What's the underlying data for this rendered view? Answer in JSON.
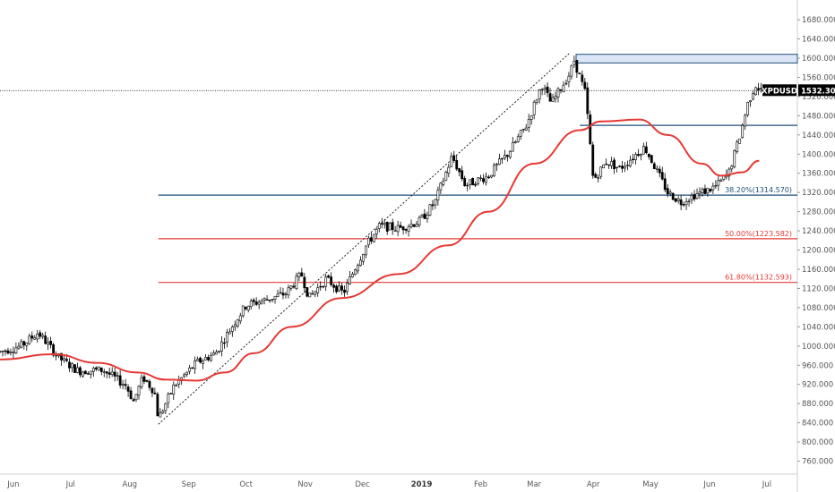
{
  "chart_data": {
    "type": "candlestick",
    "symbol": "XPDUSD",
    "last_price": "1532.300",
    "y_range": [
      748,
      1710
    ],
    "y_ticks": [
      "760.000",
      "800.000",
      "840.000",
      "880.000",
      "920.000",
      "960.000",
      "1000.000",
      "1040.000",
      "1080.000",
      "1120.000",
      "1160.000",
      "1200.000",
      "1240.000",
      "1280.000",
      "1320.000",
      "1360.000",
      "1400.000",
      "1440.000",
      "1480.000",
      "1520.000",
      "1560.000",
      "1600.000",
      "1640.000",
      "1680.000"
    ],
    "x_labels": [
      {
        "label": "Jun",
        "bold": false
      },
      {
        "label": "Jul",
        "bold": false
      },
      {
        "label": "Aug",
        "bold": false
      },
      {
        "label": "Sep",
        "bold": false
      },
      {
        "label": "Oct",
        "bold": false
      },
      {
        "label": "Nov",
        "bold": false
      },
      {
        "label": "Dec",
        "bold": false
      },
      {
        "label": "2019",
        "bold": true
      },
      {
        "label": "Feb",
        "bold": false
      },
      {
        "label": "Mar",
        "bold": false
      },
      {
        "label": "Apr",
        "bold": false
      },
      {
        "label": "May",
        "bold": false
      },
      {
        "label": "Jun",
        "bold": false
      },
      {
        "label": "Jul",
        "bold": false
      }
    ],
    "fib_levels": [
      {
        "label": "38.20%(1314.570)",
        "value": 1314.57,
        "color": "#1f4e79"
      },
      {
        "label": "50.00%(1223.582)",
        "value": 1223.582,
        "color": "#e53935"
      },
      {
        "label": "61.80%(1132.593)",
        "value": 1132.593,
        "color": "#e53935"
      }
    ],
    "horizontal_levels": [
      {
        "value": 1460,
        "color": "#1f4e79"
      }
    ],
    "resistance_zone": {
      "low": 1590,
      "high": 1608,
      "color": "#dce6f7",
      "border": "#1f4e79"
    },
    "trend_line": {
      "start": [
        "2018-08-16",
        837
      ],
      "end": [
        "2019-03-20",
        1612
      ]
    },
    "moving_average_color": "#e53935",
    "candle_color": "#000000",
    "price_key_points": [
      [
        "2018-05-25",
        988
      ],
      [
        "2018-06-05",
        1000
      ],
      [
        "2018-06-14",
        1028
      ],
      [
        "2018-06-25",
        975
      ],
      [
        "2018-07-05",
        948
      ],
      [
        "2018-07-18",
        950
      ],
      [
        "2018-07-30",
        918
      ],
      [
        "2018-08-03",
        885
      ],
      [
        "2018-08-08",
        935
      ],
      [
        "2018-08-14",
        905
      ],
      [
        "2018-08-16",
        848
      ],
      [
        "2018-08-24",
        915
      ],
      [
        "2018-09-05",
        965
      ],
      [
        "2018-09-15",
        985
      ],
      [
        "2018-09-25",
        1050
      ],
      [
        "2018-10-01",
        1085
      ],
      [
        "2018-10-10",
        1095
      ],
      [
        "2018-10-22",
        1110
      ],
      [
        "2018-10-30",
        1150
      ],
      [
        "2018-11-03",
        1100
      ],
      [
        "2018-11-12",
        1140
      ],
      [
        "2018-11-21",
        1110
      ],
      [
        "2018-11-28",
        1170
      ],
      [
        "2018-12-03",
        1210
      ],
      [
        "2018-12-10",
        1250
      ],
      [
        "2018-12-20",
        1245
      ],
      [
        "2018-12-31",
        1260
      ],
      [
        "2019-01-08",
        1300
      ],
      [
        "2019-01-17",
        1395
      ],
      [
        "2019-01-24",
        1335
      ],
      [
        "2019-02-05",
        1355
      ],
      [
        "2019-02-15",
        1400
      ],
      [
        "2019-02-25",
        1460
      ],
      [
        "2019-03-05",
        1545
      ],
      [
        "2019-03-10",
        1505
      ],
      [
        "2019-03-20",
        1570
      ],
      [
        "2019-03-22",
        1595
      ],
      [
        "2019-03-28",
        1525
      ],
      [
        "2019-04-01",
        1345
      ],
      [
        "2019-04-08",
        1385
      ],
      [
        "2019-04-15",
        1370
      ],
      [
        "2019-04-22",
        1395
      ],
      [
        "2019-04-28",
        1415
      ],
      [
        "2019-05-03",
        1375
      ],
      [
        "2019-05-10",
        1320
      ],
      [
        "2019-05-17",
        1300
      ],
      [
        "2019-05-24",
        1315
      ],
      [
        "2019-05-31",
        1325
      ],
      [
        "2019-06-05",
        1335
      ],
      [
        "2019-06-11",
        1360
      ],
      [
        "2019-06-17",
        1440
      ],
      [
        "2019-06-21",
        1505
      ],
      [
        "2019-06-25",
        1545
      ],
      [
        "2019-06-28",
        1532
      ]
    ],
    "ma_key_points": [
      [
        "2018-05-25",
        972
      ],
      [
        "2018-06-22",
        983
      ],
      [
        "2018-07-15",
        965
      ],
      [
        "2018-08-05",
        945
      ],
      [
        "2018-08-20",
        930
      ],
      [
        "2018-09-05",
        928
      ],
      [
        "2018-09-20",
        945
      ],
      [
        "2018-10-05",
        985
      ],
      [
        "2018-10-25",
        1040
      ],
      [
        "2018-11-20",
        1100
      ],
      [
        "2018-12-20",
        1150
      ],
      [
        "2019-01-15",
        1210
      ],
      [
        "2019-02-05",
        1280
      ],
      [
        "2019-03-01",
        1380
      ],
      [
        "2019-03-25",
        1450
      ],
      [
        "2019-04-05",
        1468
      ],
      [
        "2019-04-25",
        1472
      ],
      [
        "2019-05-10",
        1440
      ],
      [
        "2019-05-28",
        1380
      ],
      [
        "2019-06-07",
        1355
      ],
      [
        "2019-06-18",
        1362
      ],
      [
        "2019-06-27",
        1386
      ]
    ]
  }
}
